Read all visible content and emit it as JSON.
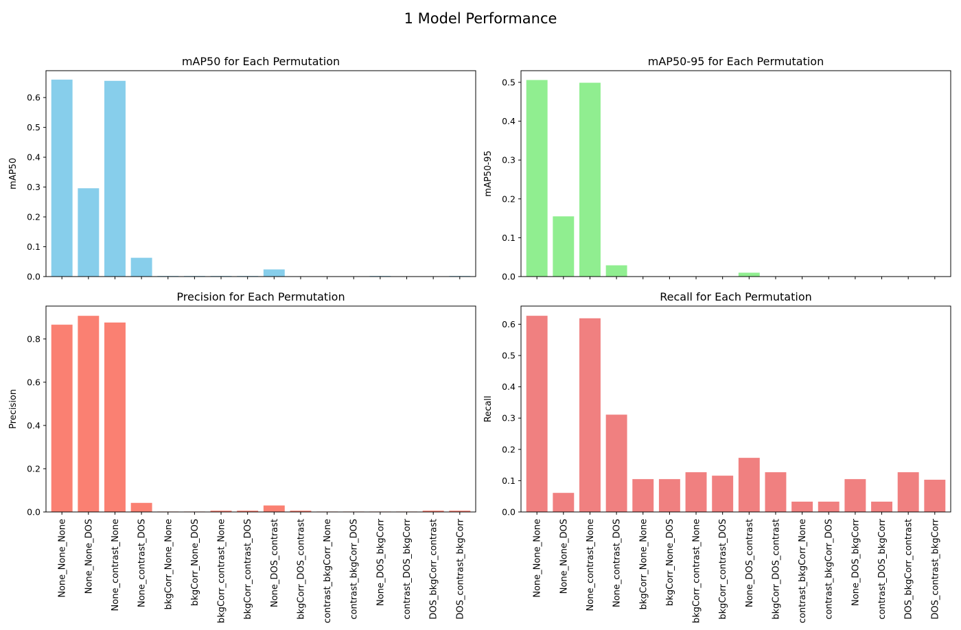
{
  "figure": {
    "suptitle": "1 Model Performance"
  },
  "categories": [
    "None_None_None",
    "None_None_DOS",
    "None_contrast_None",
    "None_contrast_DOS",
    "bkgCorr_None_None",
    "bkgCorr_None_DOS",
    "bkgCorr_contrast_None",
    "bkgCorr_contrast_DOS",
    "None_DOS_contrast",
    "bkgCorr_DOS_contrast",
    "contrast_bkgCorr_None",
    "contrast_bkgCorr_DOS",
    "None_DOS_bkgCorr",
    "contrast_DOS_bkgCorr",
    "DOS_bkgCorr_contrast",
    "DOS_contrast_bkgCorr"
  ],
  "chart_data": [
    {
      "type": "bar",
      "title": "mAP50 for Each Permutation",
      "ylabel": "mAP50",
      "xlabel": "",
      "ylim": [
        0,
        0.69
      ],
      "yticks": [
        0.0,
        0.1,
        0.2,
        0.3,
        0.4,
        0.5,
        0.6
      ],
      "color": "#87ceeb",
      "values": [
        0.66,
        0.296,
        0.656,
        0.063,
        0.002,
        0.002,
        0.002,
        0.002,
        0.024,
        0.001,
        0.0,
        0.0,
        0.002,
        0.0,
        0.001,
        0.002
      ],
      "show_xticklabels": false
    },
    {
      "type": "bar",
      "title": "mAP50-95 for Each Permutation",
      "ylabel": "mAP50-95",
      "xlabel": "",
      "ylim": [
        0,
        0.53
      ],
      "yticks": [
        0.0,
        0.1,
        0.2,
        0.3,
        0.4,
        0.5
      ],
      "color": "#90ee90",
      "values": [
        0.506,
        0.155,
        0.499,
        0.029,
        0.0,
        0.0,
        0.0,
        0.0,
        0.01,
        0.0,
        0.0,
        0.0,
        0.0,
        0.0,
        0.0,
        0.0
      ],
      "show_xticklabels": false
    },
    {
      "type": "bar",
      "title": "Precision for Each Permutation",
      "ylabel": "Precision",
      "xlabel": "",
      "ylim": [
        0,
        0.952
      ],
      "yticks": [
        0.0,
        0.2,
        0.4,
        0.6,
        0.8
      ],
      "color": "#fa8072",
      "values": [
        0.866,
        0.907,
        0.876,
        0.042,
        0.002,
        0.002,
        0.006,
        0.006,
        0.03,
        0.006,
        0.002,
        0.002,
        0.002,
        0.002,
        0.006,
        0.006
      ],
      "show_xticklabels": true
    },
    {
      "type": "bar",
      "title": "Recall for Each Permutation",
      "ylabel": "Recall",
      "xlabel": "",
      "ylim": [
        0,
        0.658
      ],
      "yticks": [
        0.0,
        0.1,
        0.2,
        0.3,
        0.4,
        0.5,
        0.6
      ],
      "color": "#f08080",
      "values": [
        0.627,
        0.061,
        0.619,
        0.311,
        0.105,
        0.105,
        0.127,
        0.116,
        0.173,
        0.127,
        0.033,
        0.033,
        0.105,
        0.033,
        0.127,
        0.103
      ],
      "show_xticklabels": true
    }
  ]
}
